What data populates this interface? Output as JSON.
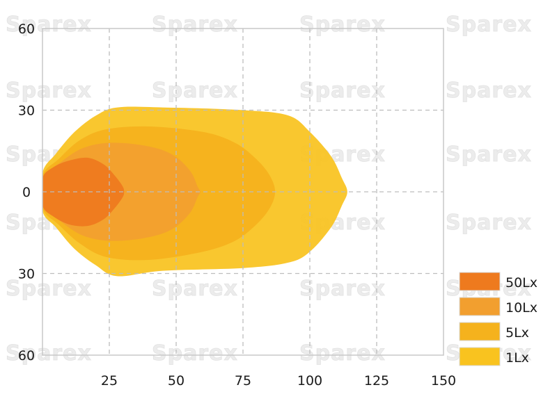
{
  "chart_data": {
    "type": "area",
    "xlim": [
      0,
      150
    ],
    "ylim": [
      -60,
      60
    ],
    "x_ticks": [
      25,
      50,
      75,
      100,
      125,
      150
    ],
    "y_ticks": [
      {
        "value": 60,
        "label": "60"
      },
      {
        "value": 30,
        "label": "30"
      },
      {
        "value": 0,
        "label": "0"
      },
      {
        "value": -30,
        "label": "30"
      },
      {
        "value": -60,
        "label": "60"
      }
    ],
    "grid": true,
    "legend_position": "bottom-right",
    "series": [
      {
        "name": "1Lx",
        "color": "#f9c31f",
        "points": [
          [
            0,
            7
          ],
          [
            5,
            14
          ],
          [
            12,
            22
          ],
          [
            20,
            28
          ],
          [
            28,
            31
          ],
          [
            45,
            31
          ],
          [
            75,
            30
          ],
          [
            92,
            28
          ],
          [
            100,
            22
          ],
          [
            108,
            13
          ],
          [
            112,
            5
          ],
          [
            114,
            0
          ],
          [
            112,
            -5
          ],
          [
            108,
            -13
          ],
          [
            100,
            -22
          ],
          [
            92,
            -26
          ],
          [
            75,
            -28
          ],
          [
            45,
            -29
          ],
          [
            28,
            -31
          ],
          [
            20,
            -27
          ],
          [
            12,
            -21
          ],
          [
            5,
            -13
          ],
          [
            0,
            -7
          ]
        ]
      },
      {
        "name": "5Lx",
        "color": "#f5b21d",
        "points": [
          [
            0,
            6
          ],
          [
            6,
            12
          ],
          [
            14,
            19
          ],
          [
            24,
            23
          ],
          [
            40,
            24
          ],
          [
            60,
            22
          ],
          [
            72,
            18
          ],
          [
            80,
            12
          ],
          [
            85,
            6
          ],
          [
            87,
            0
          ],
          [
            85,
            -6
          ],
          [
            80,
            -12
          ],
          [
            72,
            -18
          ],
          [
            60,
            -22
          ],
          [
            40,
            -25
          ],
          [
            24,
            -24
          ],
          [
            14,
            -19
          ],
          [
            6,
            -12
          ],
          [
            0,
            -6
          ]
        ]
      },
      {
        "name": "10Lx",
        "color": "#f29f2f",
        "points": [
          [
            0,
            5
          ],
          [
            7,
            11
          ],
          [
            15,
            16
          ],
          [
            25,
            18
          ],
          [
            38,
            17
          ],
          [
            48,
            14
          ],
          [
            55,
            8
          ],
          [
            58,
            2
          ],
          [
            59,
            0
          ],
          [
            58,
            -2
          ],
          [
            55,
            -8
          ],
          [
            48,
            -14
          ],
          [
            38,
            -17
          ],
          [
            25,
            -18
          ],
          [
            15,
            -16
          ],
          [
            7,
            -11
          ],
          [
            0,
            -5
          ]
        ]
      },
      {
        "name": "50Lx",
        "color": "#ee7a1e",
        "points": [
          [
            0,
            5
          ],
          [
            4,
            9
          ],
          [
            10,
            11.5
          ],
          [
            17,
            12.5
          ],
          [
            23,
            10
          ],
          [
            27,
            6
          ],
          [
            30,
            2
          ],
          [
            30.5,
            0
          ],
          [
            30,
            -2
          ],
          [
            27,
            -6
          ],
          [
            23,
            -10
          ],
          [
            17,
            -12.5
          ],
          [
            10,
            -12
          ],
          [
            4,
            -9
          ],
          [
            0,
            -5
          ]
        ]
      }
    ]
  },
  "watermark": "Sparex",
  "legend": [
    {
      "label": "50Lx",
      "color": "#ee7a1e"
    },
    {
      "label": "10Lx",
      "color": "#f29f2f"
    },
    {
      "label": "5Lx",
      "color": "#f5b21d"
    },
    {
      "label": "1Lx",
      "color": "#f9c31f"
    }
  ]
}
